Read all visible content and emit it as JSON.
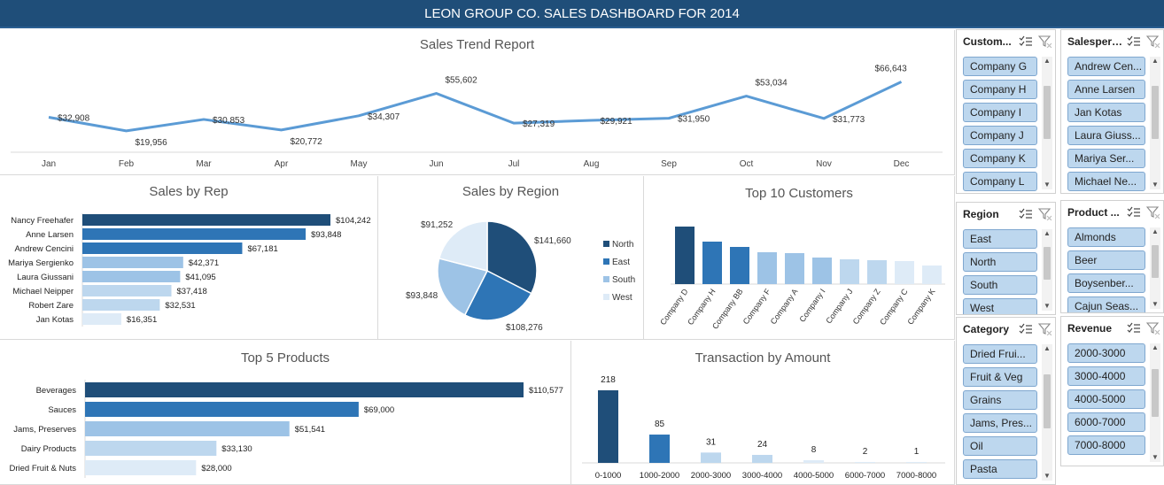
{
  "header": {
    "title": "LEON GROUP CO. SALES DASHBOARD FOR 2014"
  },
  "colors": {
    "dark": "#1f4e79",
    "mid": "#2e75b6",
    "light": "#9dc3e6",
    "lighter": "#bdd7ee",
    "lightest": "#deebf7",
    "line": "#5b9bd5"
  },
  "trend": {
    "title": "Sales Trend Report",
    "chart_data": {
      "type": "line",
      "categories": [
        "Jan",
        "Feb",
        "Mar",
        "Apr",
        "May",
        "Jun",
        "Jul",
        "Aug",
        "Sep",
        "Oct",
        "Nov",
        "Dec"
      ],
      "values": [
        32908,
        19956,
        30853,
        20772,
        34307,
        55602,
        27319,
        29921,
        31950,
        53034,
        31773,
        66643
      ],
      "labels": [
        "$32,908",
        "$19,956",
        "$30,853",
        "$20,772",
        "$34,307",
        "$55,602",
        "$27,319",
        "$29,921",
        "$31,950",
        "$53,034",
        "$31,773",
        "$66,643"
      ]
    }
  },
  "rep": {
    "title": "Sales by Rep",
    "chart_data": {
      "type": "bar",
      "categories": [
        "Nancy Freehafer",
        "Anne Larsen",
        "Andrew Cencini",
        "Mariya Sergienko",
        "Laura Giussani",
        "Michael Neipper",
        "Robert Zare",
        "Jan Kotas"
      ],
      "values": [
        104242,
        93848,
        67181,
        42371,
        41095,
        37418,
        32531,
        16351
      ],
      "labels": [
        "$104,242",
        "$93,848",
        "$67,181",
        "$42,371",
        "$41,095",
        "$37,418",
        "$32,531",
        "$16,351"
      ]
    }
  },
  "region": {
    "title": "Sales by Region",
    "chart_data": {
      "type": "pie",
      "categories": [
        "North",
        "East",
        "South",
        "West"
      ],
      "values": [
        141660,
        108276,
        93848,
        91252
      ],
      "labels": [
        "$141,660",
        "$108,276",
        "$93,848",
        "$91,252"
      ],
      "legend": "right"
    }
  },
  "customers": {
    "title": "Top 10 Customers",
    "chart_data": {
      "type": "bar",
      "categories": [
        "Company D",
        "Company H",
        "Company BB",
        "Company F",
        "Company A",
        "Company I",
        "Company J",
        "Company Z",
        "Company C",
        "Company K"
      ],
      "values": [
        65,
        48,
        42,
        36,
        35,
        30,
        28,
        27,
        26,
        21
      ]
    }
  },
  "products": {
    "title": "Top 5 Products",
    "chart_data": {
      "type": "bar",
      "categories": [
        "Beverages",
        "Sauces",
        "Jams, Preserves",
        "Dairy Products",
        "Dried Fruit & Nuts"
      ],
      "values": [
        110577,
        69000,
        51541,
        33130,
        28000
      ],
      "labels": [
        "$110,577",
        "$69,000",
        "$51,541",
        "$33,130",
        "$28,000"
      ]
    }
  },
  "transactions": {
    "title": "Transaction by Amount",
    "chart_data": {
      "type": "bar",
      "categories": [
        "0-1000",
        "1000-2000",
        "2000-3000",
        "3000-4000",
        "4000-5000",
        "6000-7000",
        "7000-8000"
      ],
      "values": [
        218,
        85,
        31,
        24,
        8,
        2,
        1
      ]
    }
  },
  "slicers": {
    "customer": {
      "title": "Custom...",
      "items": [
        "Company G",
        "Company H",
        "Company I",
        "Company J",
        "Company K",
        "Company L"
      ]
    },
    "salesperson": {
      "title": "Salespers...",
      "items": [
        "Andrew Cen...",
        "Anne Larsen",
        "Jan Kotas",
        "Laura Giuss...",
        "Mariya Ser...",
        "Michael Ne..."
      ]
    },
    "region": {
      "title": "Region",
      "items": [
        "East",
        "North",
        "South",
        "West"
      ]
    },
    "product": {
      "title": "Product ...",
      "items": [
        "Almonds",
        "Beer",
        "Boysenber...",
        "Cajun Seas..."
      ]
    },
    "category": {
      "title": "Category",
      "items": [
        "Dried Frui...",
        "Fruit & Veg",
        "Grains",
        "Jams, Pres...",
        "Oil",
        "Pasta"
      ]
    },
    "revenue": {
      "title": "Revenue",
      "items": [
        "2000-3000",
        "3000-4000",
        "4000-5000",
        "6000-7000",
        "7000-8000"
      ]
    }
  }
}
